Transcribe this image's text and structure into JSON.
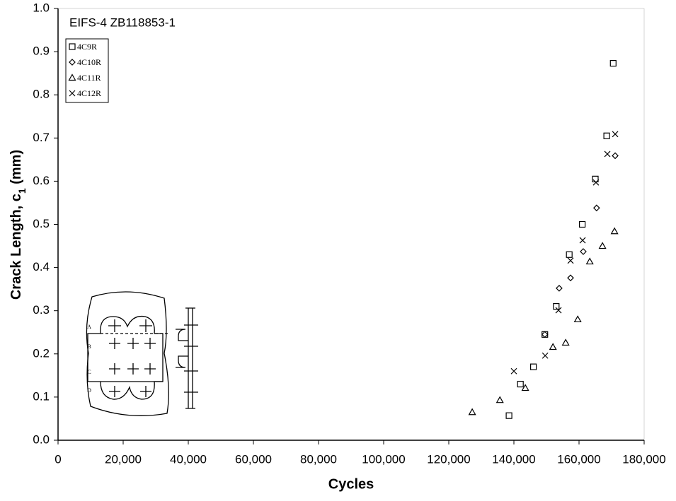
{
  "chart_data": {
    "type": "scatter",
    "title": "EIFS-4 ZB118853-1",
    "xlabel": "Cycles",
    "ylabel": [
      "Crack Length, c",
      "1",
      " (mm)"
    ],
    "xlim": [
      0,
      180000
    ],
    "ylim": [
      0,
      1
    ],
    "xticks": [
      0,
      {
        "value": 20000,
        "label": "20,000"
      },
      {
        "value": 40000,
        "label": "40,000"
      },
      {
        "value": 60000,
        "label": "60,000"
      },
      {
        "value": 80000,
        "label": "80,000"
      },
      {
        "value": 100000,
        "label": "100,000"
      },
      {
        "value": 120000,
        "label": "120,000"
      },
      {
        "value": 140000,
        "label": "140,000"
      },
      {
        "value": 160000,
        "label": "160,000"
      },
      {
        "value": 180000,
        "label": "180,000"
      }
    ],
    "yticks": [
      {
        "value": 0,
        "label": "0.0"
      },
      0.1,
      0.2,
      0.3,
      0.4,
      0.5,
      0.6,
      0.7,
      0.8,
      0.9,
      {
        "value": 1,
        "label": "1.0"
      }
    ],
    "annotations": [
      "A",
      "B",
      "C",
      "D"
    ],
    "series": [
      {
        "name": "4C9R",
        "marker": "square",
        "color": "#000000",
        "x": [
          138500,
          142000,
          146000,
          149500,
          153000,
          157000,
          161000,
          165000,
          168500,
          170500
        ],
        "values": [
          0.057,
          0.13,
          0.17,
          0.245,
          0.31,
          0.43,
          0.5,
          0.605,
          0.705,
          0.873
        ]
      },
      {
        "name": "4C10R",
        "marker": "diamond",
        "color": "#000000",
        "x": [
          149500,
          153900,
          157400,
          161300,
          165400,
          171100
        ],
        "values": [
          0.245,
          0.352,
          0.376,
          0.437,
          0.538,
          0.659
        ]
      },
      {
        "name": "4C11R",
        "marker": "triangle",
        "color": "#000000",
        "x": [
          127200,
          135700,
          143500,
          152000,
          155900,
          159600,
          163300,
          167200,
          170900
        ],
        "values": [
          0.065,
          0.093,
          0.121,
          0.216,
          0.226,
          0.28,
          0.414,
          0.45,
          0.484
        ]
      },
      {
        "name": "4C12R",
        "marker": "x",
        "color": "#000000",
        "x": [
          140000,
          149600,
          153700,
          157400,
          161100,
          165200,
          168700,
          171100
        ],
        "values": [
          0.16,
          0.196,
          0.301,
          0.416,
          0.463,
          0.597,
          0.663,
          0.709
        ]
      }
    ]
  }
}
